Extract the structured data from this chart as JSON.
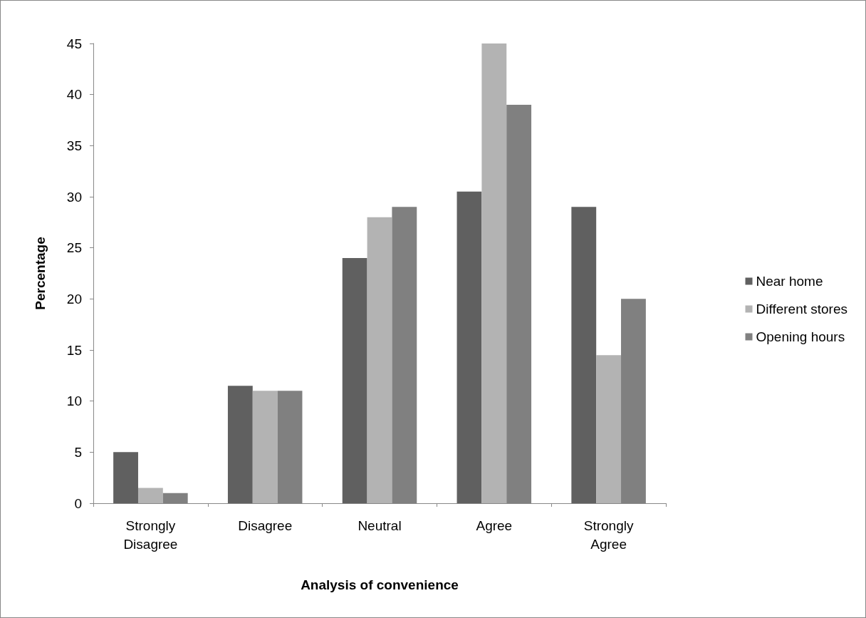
{
  "chart_data": {
    "type": "bar",
    "xlabel": "Analysis of convenience",
    "ylabel": "Percentage",
    "categories": [
      "Strongly\nDisagree",
      "Disagree",
      "Neutral",
      "Agree",
      "Strongly\nAgree"
    ],
    "series": [
      {
        "name": "Near home",
        "color": "#606060",
        "values": [
          5,
          11.5,
          24,
          30.5,
          29
        ]
      },
      {
        "name": "Different stores",
        "color": "#b3b3b3",
        "values": [
          1.5,
          11,
          28,
          45,
          14.5
        ]
      },
      {
        "name": "Opening hours",
        "color": "#808080",
        "values": [
          1,
          11,
          29,
          39,
          20
        ]
      }
    ],
    "ylim": [
      0,
      45
    ],
    "yticks": [
      0,
      5,
      10,
      15,
      20,
      25,
      30,
      35,
      40,
      45
    ],
    "grid": false,
    "legend": "right"
  }
}
